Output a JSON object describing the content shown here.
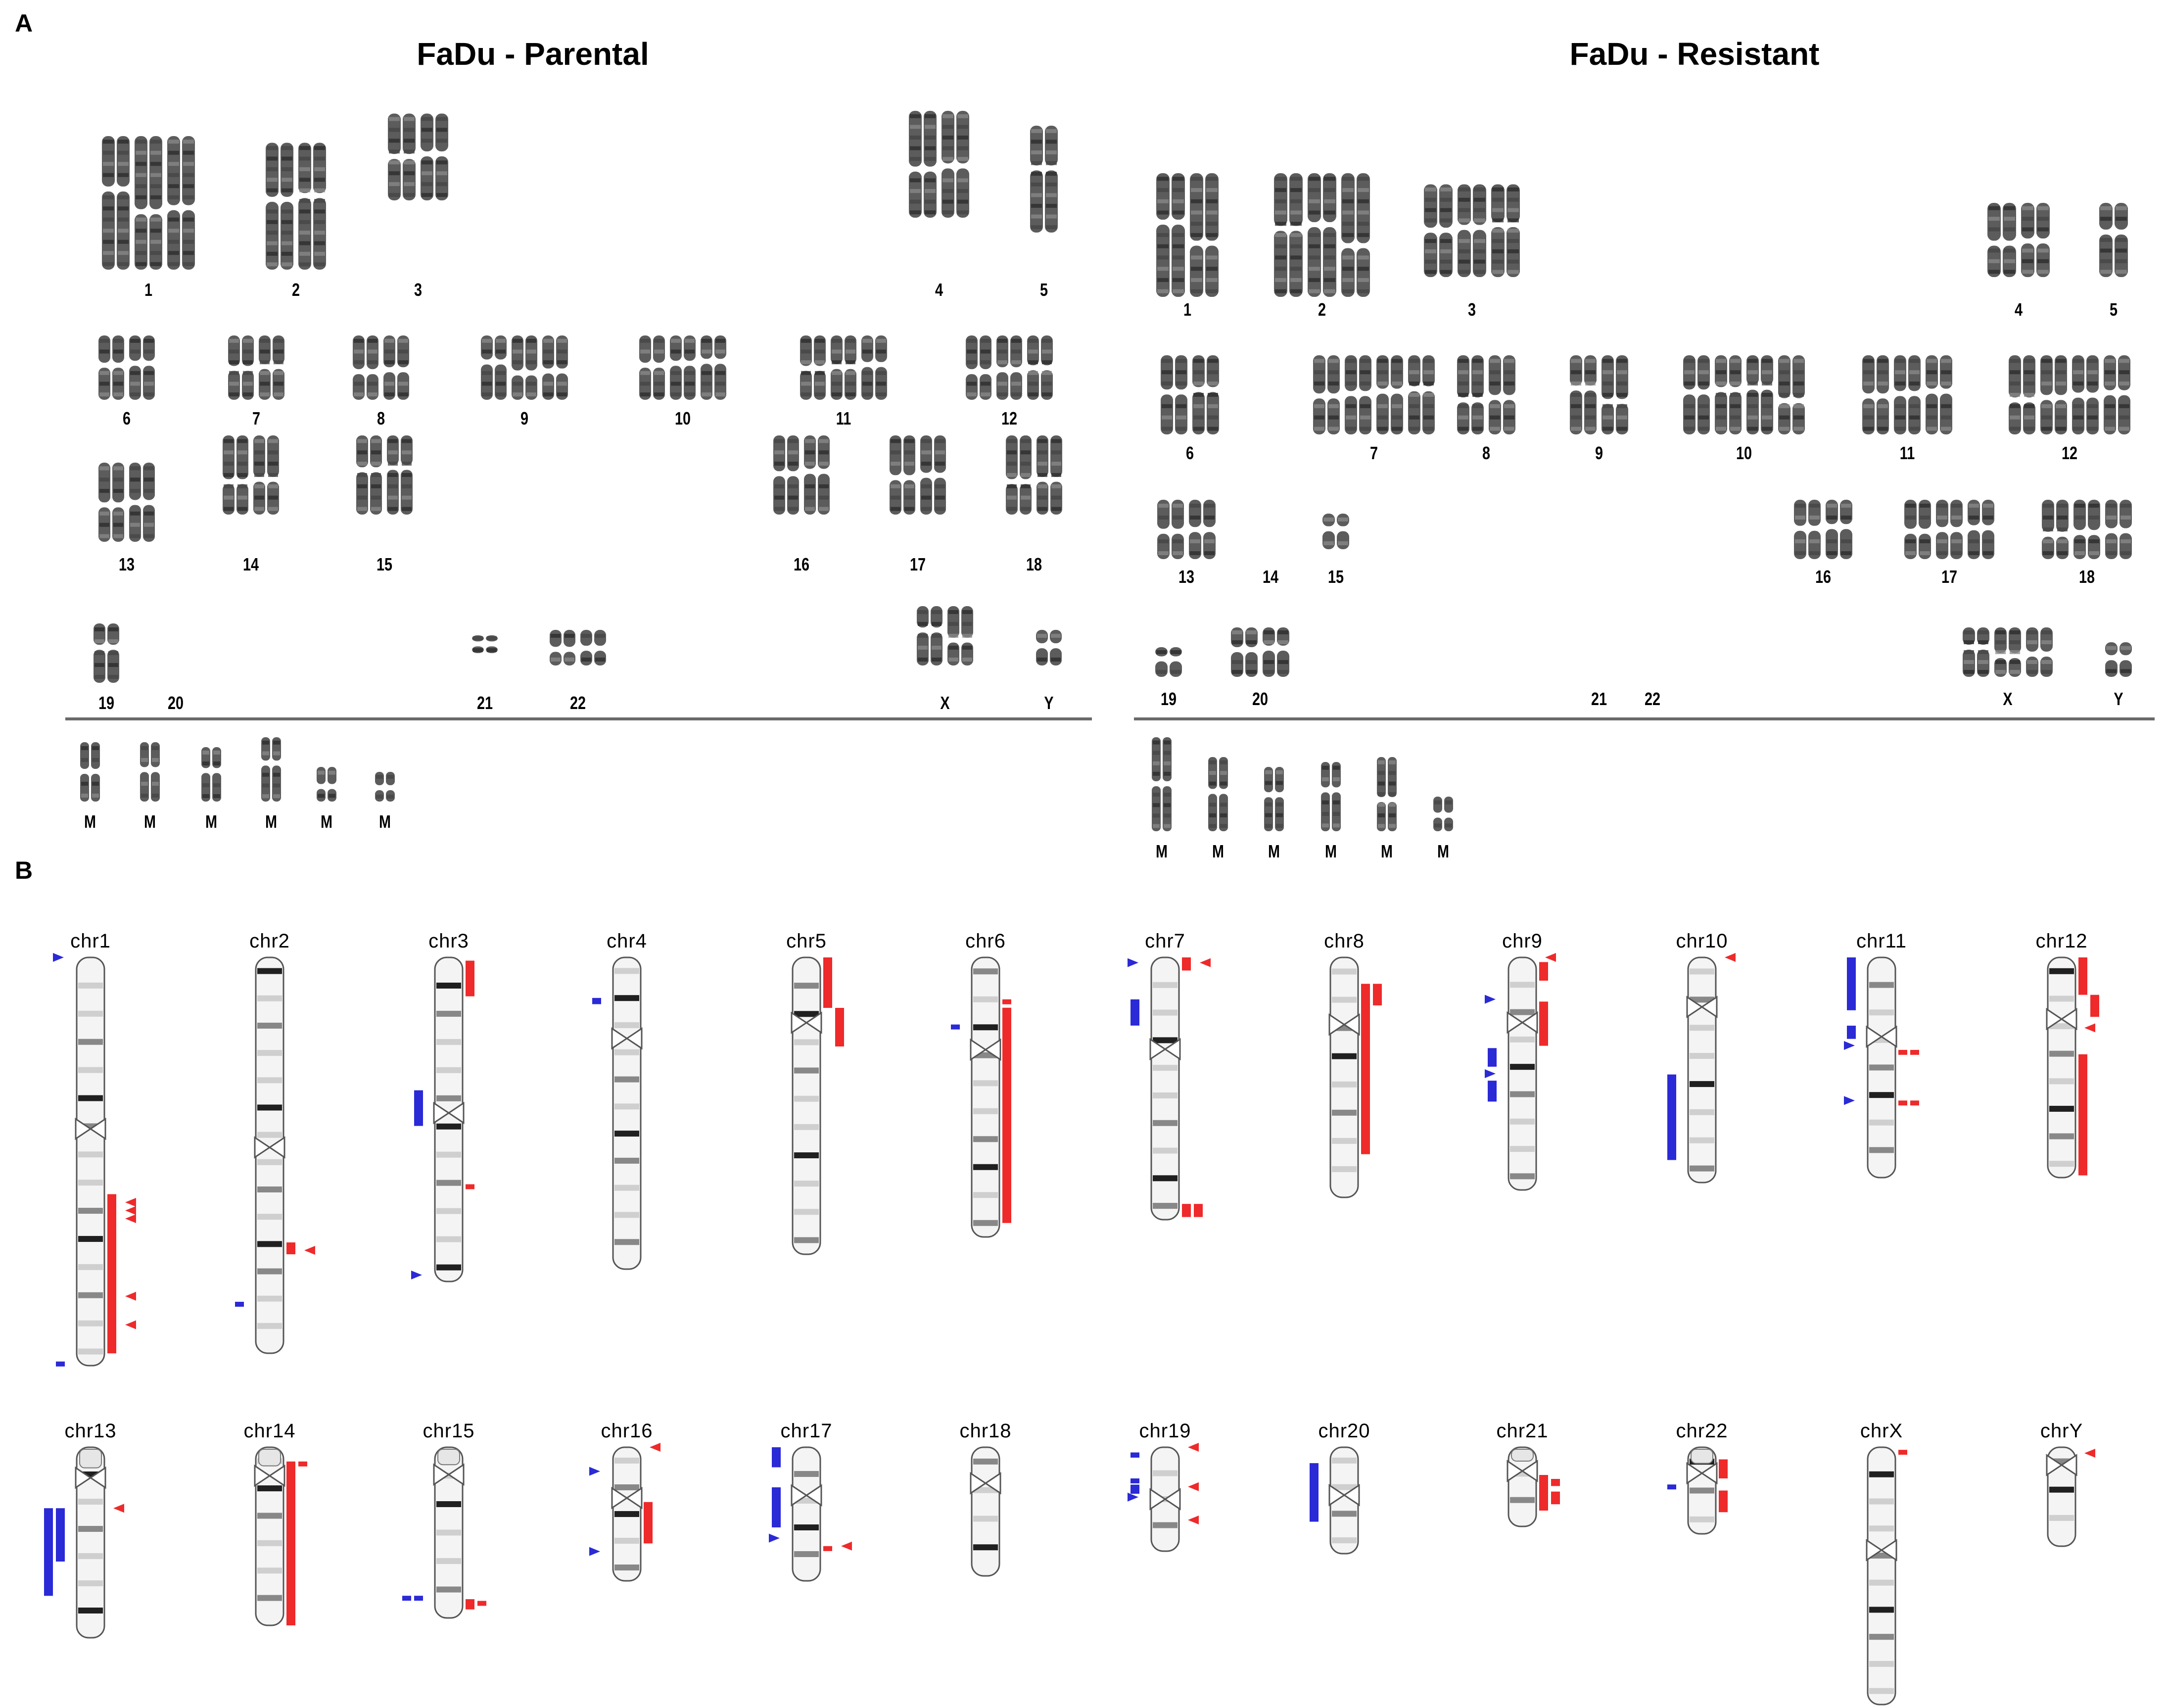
{
  "panelA": {
    "letter": "A",
    "parental": {
      "title": "FaDu - Parental",
      "rows": [
        [
          {
            "label": "1",
            "count": 3
          },
          {
            "label": "2",
            "count": 2
          },
          {
            "label": "3",
            "count": 2
          },
          {
            "label": "4",
            "count": 2
          },
          {
            "label": "5",
            "count": 1
          }
        ],
        [
          {
            "label": "6",
            "count": 2
          },
          {
            "label": "7",
            "count": 2
          },
          {
            "label": "8",
            "count": 2
          },
          {
            "label": "9",
            "count": 3
          },
          {
            "label": "10",
            "count": 3
          },
          {
            "label": "11",
            "count": 3
          },
          {
            "label": "12",
            "count": 3
          }
        ],
        [
          {
            "label": "13",
            "count": 2
          },
          {
            "label": "14",
            "count": 2
          },
          {
            "label": "15",
            "count": 2
          },
          {
            "label": "16",
            "count": 2
          },
          {
            "label": "17",
            "count": 2
          },
          {
            "label": "18",
            "count": 2
          }
        ],
        [
          {
            "label": "19",
            "count": 1
          },
          {
            "label": "20",
            "count": 0
          },
          {
            "label": "21",
            "count": 1
          },
          {
            "label": "22",
            "count": 2
          },
          {
            "label": "X",
            "count": 2
          },
          {
            "label": "Y",
            "count": 1
          }
        ]
      ],
      "markers": [
        "M",
        "M",
        "M",
        "M",
        "M",
        "M"
      ]
    },
    "resistant": {
      "title": "FaDu - Resistant",
      "rows": [
        [
          {
            "label": "1",
            "count": 2
          },
          {
            "label": "2",
            "count": 3
          },
          {
            "label": "3",
            "count": 3
          },
          {
            "label": "4",
            "count": 2
          },
          {
            "label": "5",
            "count": 1
          }
        ],
        [
          {
            "label": "6",
            "count": 2
          },
          {
            "label": "7",
            "count": 4
          },
          {
            "label": "8",
            "count": 2
          },
          {
            "label": "9",
            "count": 2
          },
          {
            "label": "10",
            "count": 4
          },
          {
            "label": "11",
            "count": 3
          },
          {
            "label": "12",
            "count": 4
          }
        ],
        [
          {
            "label": "13",
            "count": 2
          },
          {
            "label": "14",
            "count": 0
          },
          {
            "label": "15",
            "count": 1
          },
          {
            "label": "16",
            "count": 2
          },
          {
            "label": "17",
            "count": 3
          },
          {
            "label": "18",
            "count": 3
          }
        ],
        [
          {
            "label": "19",
            "count": 1
          },
          {
            "label": "20",
            "count": 2
          },
          {
            "label": "21",
            "count": 0
          },
          {
            "label": "22",
            "count": 0
          },
          {
            "label": "X",
            "count": 3
          },
          {
            "label": "Y",
            "count": 1
          }
        ]
      ],
      "markers": [
        "M",
        "M",
        "M",
        "M",
        "M",
        "M"
      ]
    }
  },
  "panelB": {
    "letter": "B",
    "legend_colors": {
      "loss": "#2a2ad6",
      "gain": "#ee2a2a"
    },
    "chromosomes": [
      {
        "name": "chr1"
      },
      {
        "name": "chr2"
      },
      {
        "name": "chr3"
      },
      {
        "name": "chr4"
      },
      {
        "name": "chr5"
      },
      {
        "name": "chr6"
      },
      {
        "name": "chr7"
      },
      {
        "name": "chr8"
      },
      {
        "name": "chr9"
      },
      {
        "name": "chr10"
      },
      {
        "name": "chr11"
      },
      {
        "name": "chr12"
      },
      {
        "name": "chr13"
      },
      {
        "name": "chr14"
      },
      {
        "name": "chr15"
      },
      {
        "name": "chr16"
      },
      {
        "name": "chr17"
      },
      {
        "name": "chr18"
      },
      {
        "name": "chr19"
      },
      {
        "name": "chr20"
      },
      {
        "name": "chr21"
      },
      {
        "name": "chr22"
      },
      {
        "name": "chrX"
      },
      {
        "name": "chrY"
      }
    ]
  }
}
